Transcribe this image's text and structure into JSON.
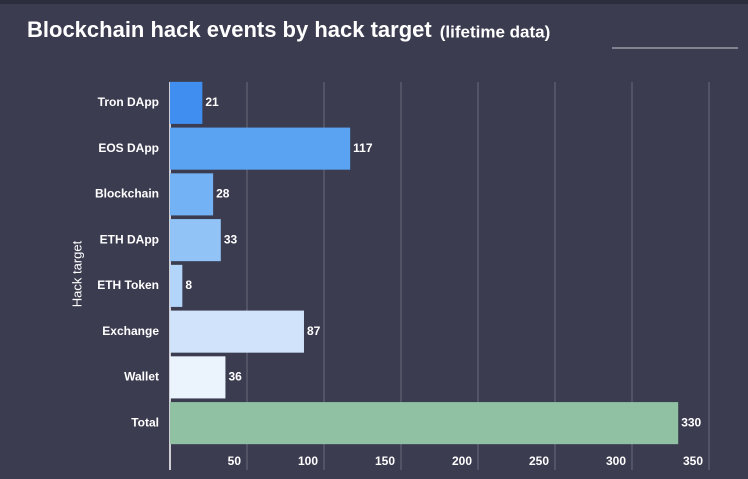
{
  "chart_data": {
    "type": "hbar",
    "title": "Blockchain hack events by hack target",
    "subtitle": "(lifetime data)",
    "y_label": "Hack target",
    "categories": [
      "Tron DApp",
      "EOS DApp",
      "Blockchain",
      "ETH DApp",
      "ETH Token",
      "Exchange",
      "Wallet",
      "Total"
    ],
    "values": [
      21,
      117,
      28,
      33,
      8,
      87,
      36,
      330
    ],
    "colors": [
      "#3f8ef0",
      "#5aa3f3",
      "#72b2f5",
      "#91c3f7",
      "#b3d5f9",
      "#d0e3fb",
      "#ebf3fd",
      "#8fc1a2"
    ],
    "xlim": [
      0,
      350
    ],
    "xticks": [
      50,
      100,
      150,
      200,
      250,
      300,
      350
    ],
    "grid": true
  }
}
